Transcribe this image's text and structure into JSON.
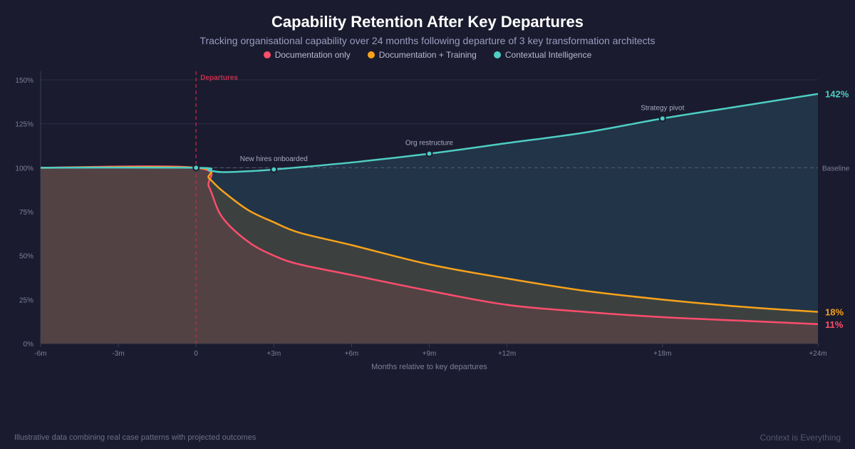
{
  "colors": {
    "background": "#1a1b2e",
    "doc": "#ff4d6d",
    "train": "#f7a21b",
    "ctx": "#4ecdc4",
    "departure": "#c0304e"
  },
  "footer": {
    "note": "Illustrative data combining real case patterns with projected outcomes",
    "brand": "Context is Everything"
  },
  "chart_data": {
    "type": "area",
    "title": "Capability Retention After Key Departures",
    "subtitle": "Tracking organisational capability over 24 months following departure of 3 key transformation architects",
    "xlabel": "Months relative to key departures",
    "ylabel": "",
    "xlim": [
      -6,
      24
    ],
    "ylim": [
      0,
      150
    ],
    "grid": true,
    "legend_placement": "top-center",
    "x_ticks": [
      {
        "v": -6,
        "label": "-6m"
      },
      {
        "v": -3,
        "label": "-3m"
      },
      {
        "v": 0,
        "label": "0"
      },
      {
        "v": 3,
        "label": "+3m"
      },
      {
        "v": 6,
        "label": "+6m"
      },
      {
        "v": 9,
        "label": "+9m"
      },
      {
        "v": 12,
        "label": "+12m"
      },
      {
        "v": 18,
        "label": "+18m"
      },
      {
        "v": 24,
        "label": "+24m"
      }
    ],
    "y_ticks": [
      {
        "v": 0,
        "label": "0%"
      },
      {
        "v": 25,
        "label": "25%"
      },
      {
        "v": 50,
        "label": "50%"
      },
      {
        "v": 75,
        "label": "75%"
      },
      {
        "v": 100,
        "label": "100%"
      },
      {
        "v": 125,
        "label": "125%"
      },
      {
        "v": 150,
        "label": "150%"
      }
    ],
    "baseline": {
      "value": 100,
      "label": "Baseline"
    },
    "event_line": {
      "x": 0,
      "label": "Departures"
    },
    "series": [
      {
        "name": "Contextual Intelligence",
        "key": "ctx",
        "end_label": "142%",
        "points": [
          [
            -6,
            100
          ],
          [
            0,
            100
          ],
          [
            0.5,
            98.5
          ],
          [
            1,
            97.5
          ],
          [
            2,
            98
          ],
          [
            3,
            99
          ],
          [
            6,
            103
          ],
          [
            9,
            108
          ],
          [
            12,
            114
          ],
          [
            15,
            120
          ],
          [
            18,
            128
          ],
          [
            21,
            135
          ],
          [
            24,
            142
          ]
        ]
      },
      {
        "name": "Documentation + Training",
        "key": "train",
        "end_label": "18%",
        "points": [
          [
            -6,
            100
          ],
          [
            0,
            100
          ],
          [
            0.5,
            94
          ],
          [
            1,
            87
          ],
          [
            2,
            76
          ],
          [
            3,
            69
          ],
          [
            4,
            63
          ],
          [
            6,
            56
          ],
          [
            9,
            45
          ],
          [
            12,
            37
          ],
          [
            15,
            30
          ],
          [
            18,
            25
          ],
          [
            21,
            21
          ],
          [
            24,
            18
          ]
        ]
      },
      {
        "name": "Documentation only",
        "key": "doc",
        "end_label": "11%",
        "points": [
          [
            -6,
            100
          ],
          [
            0,
            100
          ],
          [
            0.5,
            89
          ],
          [
            1,
            72
          ],
          [
            2,
            58
          ],
          [
            3,
            50
          ],
          [
            4,
            45
          ],
          [
            6,
            39
          ],
          [
            9,
            30
          ],
          [
            12,
            22
          ],
          [
            15,
            18
          ],
          [
            18,
            15
          ],
          [
            21,
            13
          ],
          [
            24,
            11
          ]
        ]
      }
    ],
    "legend": [
      {
        "name": "Documentation only",
        "key": "doc"
      },
      {
        "name": "Documentation + Training",
        "key": "train"
      },
      {
        "name": "Contextual Intelligence",
        "key": "ctx"
      }
    ],
    "annotations": [
      {
        "x": 0,
        "y": 100,
        "label": ""
      },
      {
        "x": 3,
        "y": 99,
        "label": "New hires onboarded"
      },
      {
        "x": 9,
        "y": 108,
        "label": "Org restructure"
      },
      {
        "x": 18,
        "y": 128,
        "label": "Strategy pivot"
      }
    ]
  }
}
